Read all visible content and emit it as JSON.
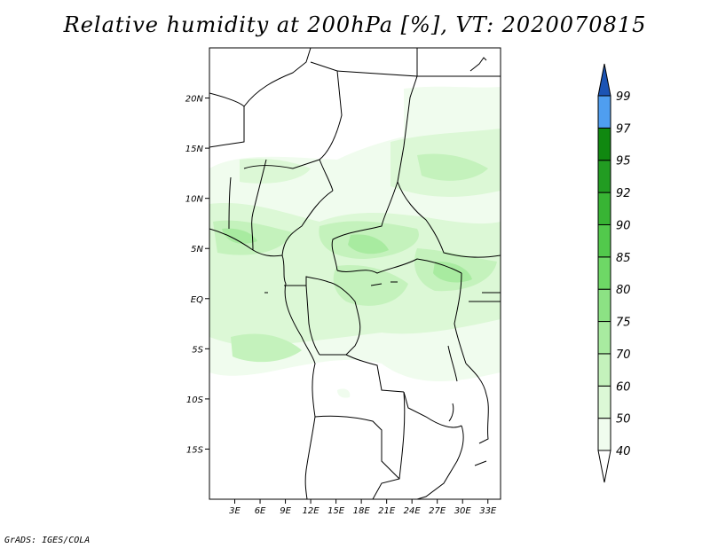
{
  "title": "Relative humidity at 200hPa [%], VT: 2020070815",
  "credit": "GrADS: IGES/COLA",
  "map": {
    "lon_range": [
      0,
      34.5
    ],
    "lat_range": [
      -20,
      25
    ],
    "lat_ticks": [
      {
        "value": 20,
        "label": "20N"
      },
      {
        "value": 15,
        "label": "15N"
      },
      {
        "value": 10,
        "label": "10N"
      },
      {
        "value": 5,
        "label": "5N"
      },
      {
        "value": 0,
        "label": "EQ"
      },
      {
        "value": -5,
        "label": "5S"
      },
      {
        "value": -10,
        "label": "10S"
      },
      {
        "value": -15,
        "label": "15S"
      }
    ],
    "lon_ticks": [
      {
        "value": 3,
        "label": "3E"
      },
      {
        "value": 6,
        "label": "6E"
      },
      {
        "value": 9,
        "label": "9E"
      },
      {
        "value": 12,
        "label": "12E"
      },
      {
        "value": 15,
        "label": "15E"
      },
      {
        "value": 18,
        "label": "18E"
      },
      {
        "value": 21,
        "label": "21E"
      },
      {
        "value": 24,
        "label": "24E"
      },
      {
        "value": 27,
        "label": "27E"
      },
      {
        "value": 30,
        "label": "30E"
      },
      {
        "value": 33,
        "label": "33E"
      }
    ]
  },
  "colorbar": {
    "levels": [
      "40",
      "50",
      "60",
      "70",
      "75",
      "80",
      "85",
      "90",
      "92",
      "95",
      "97",
      "99"
    ],
    "colors": {
      "c40_50": "#f0fcee",
      "c50_60": "#dcf8d6",
      "c60_70": "#c4f2bc",
      "c70_75": "#a8eba0",
      "c75_80": "#8ce284",
      "c80_85": "#6ed866",
      "c85_90": "#52c94c",
      "c90_92": "#38b434",
      "c92_95": "#229c22",
      "c95_97": "#108810",
      "c97_99": "#4f9ef0",
      "c99_up": "#2a72d8",
      "top_arrow": "#1c54b4",
      "bottom_arrow": "#ffffff"
    }
  }
}
